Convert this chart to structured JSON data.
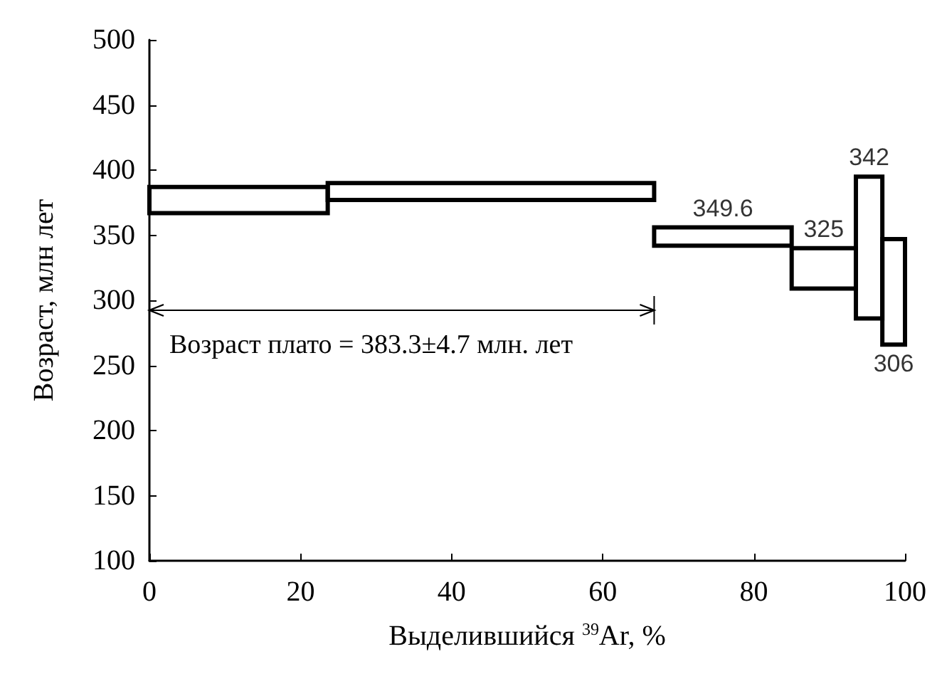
{
  "chart_data": {
    "type": "histogram",
    "xlabel": "Выделившийся $^{39}$Ar, %",
    "ylabel": "Возраст, млн лет",
    "bins": [
      0,
      23.6,
      66.8,
      85,
      93.5,
      97,
      100
    ],
    "base": [
      367,
      377,
      342,
      309,
      286,
      266
    ],
    "values": [
      20,
      13,
      14,
      31,
      109,
      81
    ],
    "color": "#000000",
    "xlim": [
      0,
      100
    ],
    "xticks": [
      0,
      20,
      40,
      60,
      80,
      100
    ],
    "ylim": [
      100,
      500
    ],
    "yticks": [
      100,
      150,
      200,
      250,
      300,
      350,
      400,
      450,
      500
    ],
    "grid": false,
    "annotations": [
      "Возраст плато = 383.3±4.7 млн. лет",
      {
        "text": "349.6",
        "x": 75.9,
        "y": 356
      },
      {
        "text": "325",
        "x": 89.25,
        "y": 340
      },
      {
        "text": "342",
        "x": 95.25,
        "y": 395
      },
      {
        "text": "306",
        "x": 98.5,
        "y": 266
      }
    ]
  }
}
